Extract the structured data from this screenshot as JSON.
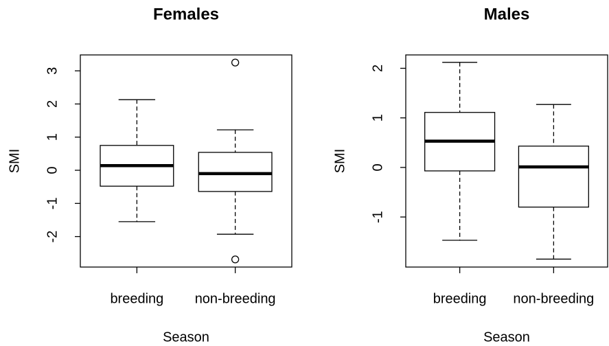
{
  "chart_data": [
    {
      "type": "box",
      "title": "Females",
      "xlabel": "Season",
      "ylabel": "SMI",
      "categories": [
        "breeding",
        "non-breeding"
      ],
      "boxes": [
        {
          "whisker_low": -1.55,
          "q1": -0.48,
          "median": 0.14,
          "q3": 0.75,
          "whisker_high": 2.13,
          "outliers": []
        },
        {
          "whisker_low": -1.93,
          "q1": -0.64,
          "median": -0.1,
          "q3": 0.54,
          "whisker_high": 1.22,
          "outliers": [
            3.25,
            -2.69
          ]
        }
      ],
      "ylim": [
        -2.92,
        3.48
      ],
      "yticks": [
        -2,
        -1,
        0,
        1,
        2,
        3
      ]
    },
    {
      "type": "box",
      "title": "Males",
      "xlabel": "Season",
      "ylabel": "SMI",
      "categories": [
        "breeding",
        "non-breeding"
      ],
      "boxes": [
        {
          "whisker_low": -1.47,
          "q1": -0.07,
          "median": 0.53,
          "q3": 1.11,
          "whisker_high": 2.12,
          "outliers": []
        },
        {
          "whisker_low": -1.85,
          "q1": -0.8,
          "median": 0.01,
          "q3": 0.43,
          "whisker_high": 1.27,
          "outliers": []
        }
      ],
      "ylim": [
        -2.01,
        2.27
      ],
      "yticks": [
        -1,
        0,
        1,
        2
      ]
    }
  ]
}
